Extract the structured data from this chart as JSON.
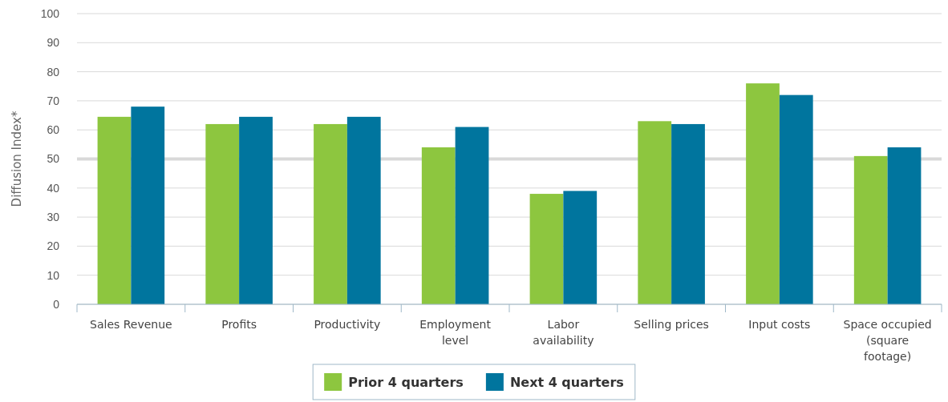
{
  "chart_data": {
    "type": "bar",
    "ylabel": "Diffusion Index*",
    "categories": [
      "Sales Revenue",
      "Profits",
      "Productivity",
      "Employment level",
      "Labor availability",
      "Selling prices",
      "Input costs",
      "Space occupied (square footage)"
    ],
    "series": [
      {
        "name": "Prior 4 quarters",
        "color": "#8dc63f",
        "values": [
          64.5,
          62,
          62,
          54,
          38,
          63,
          76,
          51
        ]
      },
      {
        "name": "Next 4 quarters",
        "color": "#00759e",
        "values": [
          68,
          64.5,
          64.5,
          61,
          39,
          62,
          72,
          54
        ]
      }
    ],
    "ylim": [
      0,
      100
    ],
    "yticks": [
      0,
      10,
      20,
      30,
      40,
      50,
      60,
      70,
      80,
      90,
      100
    ],
    "grid": "y",
    "ref_lines": [
      {
        "axis": "y",
        "value": 50,
        "color": "#d9d9d9"
      }
    ],
    "legend": "bottom"
  }
}
